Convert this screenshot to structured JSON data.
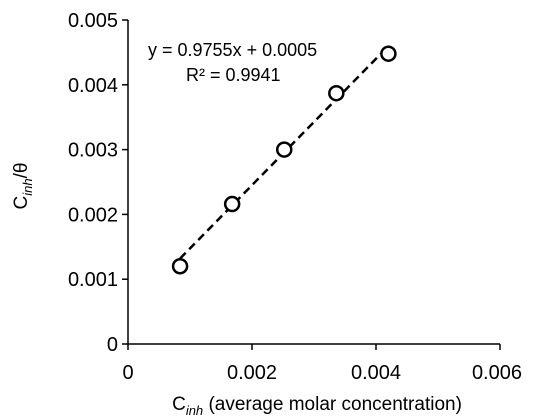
{
  "chart_data": {
    "type": "scatter",
    "title": "",
    "xlabel": {
      "symbol": "C",
      "subscript": "inh",
      "text": " (average molar concentration)"
    },
    "ylabel": {
      "symbol": "C",
      "subscript": "inh",
      "text": "/θ"
    },
    "xlim": [
      0,
      0.006
    ],
    "ylim": [
      0,
      0.005
    ],
    "x_ticks": [
      "0",
      "0.002",
      "0.004",
      "0.006"
    ],
    "y_ticks": [
      "0",
      "0.001",
      "0.002",
      "0.003",
      "0.004",
      "0.005"
    ],
    "grid": false,
    "legend": "none",
    "series": [
      {
        "marker": "open-circle",
        "x": [
          0.00084,
          0.00168,
          0.00252,
          0.00336,
          0.0042
        ],
        "y": [
          0.0012,
          0.00216,
          0.003,
          0.00387,
          0.00448
        ]
      }
    ],
    "trendline": {
      "style": "dashed",
      "slope": 0.9755,
      "intercept": 0.0005,
      "x_range": [
        0.00084,
        0.0042
      ]
    },
    "annotations": {
      "equation": "y = 0.9755x + 0.0005",
      "r_squared": "R² = 0.9941"
    },
    "colors": {
      "marker": "#000000",
      "trendline": "#000000",
      "axis": "#000000"
    }
  }
}
